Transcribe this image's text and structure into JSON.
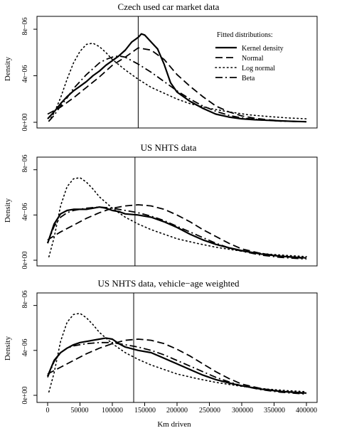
{
  "chart_data": [
    {
      "type": "line",
      "title": "Czech used car market data",
      "xlabel": "",
      "ylabel": "Density",
      "xlim": [
        0,
        400000
      ],
      "ylim": [
        0,
        8.8e-06
      ],
      "yticks": [
        0,
        4e-06,
        8e-06
      ],
      "ytick_labels": [
        "0e+00",
        "4e−06",
        "8e−06"
      ],
      "vline_x": 140000,
      "legend": {
        "title": "Fitted distributions:",
        "position": "top-right",
        "entries": [
          "Kernel density",
          "Normal",
          "Log normal",
          "Beta"
        ]
      },
      "series": [
        {
          "name": "Kernel density",
          "dash": "solid",
          "width": 2.2,
          "x": [
            0,
            10000,
            20000,
            30000,
            40000,
            50000,
            60000,
            70000,
            80000,
            90000,
            100000,
            110000,
            120000,
            130000,
            140000,
            145000,
            150000,
            160000,
            170000,
            180000,
            190000,
            200000,
            220000,
            240000,
            260000,
            280000,
            300000,
            320000,
            340000,
            360000,
            380000,
            400000
          ],
          "y": [
            3e-07,
            9e-07,
            1.6e-06,
            2.2e-06,
            2.7e-06,
            3.1e-06,
            3.5e-06,
            4e-06,
            4.4e-06,
            4.9e-06,
            5.3e-06,
            5.7e-06,
            6.2e-06,
            6.9e-06,
            7.3e-06,
            7.6e-06,
            7.5e-06,
            6.9e-06,
            6.3e-06,
            5e-06,
            3.4e-06,
            2.6e-06,
            1.8e-06,
            1.2e-06,
            7e-07,
            4.5e-07,
            3e-07,
            2.2e-07,
            1.7e-07,
            1.2e-07,
            8e-08,
            5e-08
          ]
        },
        {
          "name": "Normal",
          "dash": "longdash",
          "width": 1.8,
          "x": [
            0,
            20000,
            40000,
            60000,
            80000,
            100000,
            120000,
            140000,
            160000,
            180000,
            200000,
            220000,
            240000,
            260000,
            280000,
            300000,
            320000,
            340000,
            360000,
            380000,
            400000
          ],
          "y": [
            7e-07,
            1.3e-06,
            2.1e-06,
            3e-06,
            3.9e-06,
            4.9e-06,
            5.6e-06,
            6.4e-06,
            6.2e-06,
            5.4e-06,
            4.1e-06,
            3.1e-06,
            2.2e-06,
            1.4e-06,
            9e-07,
            5.5e-07,
            3.5e-07,
            2.2e-07,
            1.3e-07,
            8e-08,
            5e-08
          ]
        },
        {
          "name": "Log normal",
          "dash": "dotted",
          "width": 1.6,
          "x": [
            2000,
            10000,
            20000,
            30000,
            40000,
            50000,
            60000,
            70000,
            80000,
            90000,
            100000,
            120000,
            140000,
            160000,
            180000,
            200000,
            220000,
            250000,
            280000,
            310000,
            340000,
            370000,
            400000
          ],
          "y": [
            1e-07,
            8e-07,
            2.1e-06,
            3.7e-06,
            5.1e-06,
            6.1e-06,
            6.7e-06,
            6.8e-06,
            6.5e-06,
            6e-06,
            5.4e-06,
            4.5e-06,
            3.7e-06,
            3e-06,
            2.5e-06,
            2e-06,
            1.6e-06,
            1.2e-06,
            9e-07,
            6.5e-07,
            5e-07,
            3.8e-07,
            3e-07
          ]
        },
        {
          "name": "Beta",
          "dash": "dashdot",
          "width": 1.8,
          "x": [
            2000,
            10000,
            20000,
            30000,
            40000,
            50000,
            60000,
            70000,
            80000,
            90000,
            100000,
            110000,
            120000,
            140000,
            160000,
            180000,
            200000,
            220000,
            240000,
            260000,
            280000,
            300000,
            330000,
            360000,
            400000
          ],
          "y": [
            1e-07,
            6e-07,
            1.4e-06,
            2.1e-06,
            2.9e-06,
            3.5e-06,
            4.1e-06,
            4.6e-06,
            5.1e-06,
            5.4e-06,
            5.6e-06,
            5.7e-06,
            5.6e-06,
            5e-06,
            4.3e-06,
            3.5e-06,
            2.7e-06,
            2e-06,
            1.4e-06,
            9.5e-07,
            6e-07,
            3.8e-07,
            2e-07,
            1e-07,
            5e-08
          ]
        }
      ]
    },
    {
      "type": "line",
      "title": "US NHTS data",
      "xlabel": "",
      "ylabel": "Density",
      "xlim": [
        0,
        400000
      ],
      "ylim": [
        0,
        8.8e-06
      ],
      "yticks": [
        0,
        4e-06,
        8e-06
      ],
      "ytick_labels": [
        "0e+00",
        "4e−06",
        "8e−06"
      ],
      "vline_x": 135000,
      "series": [
        {
          "name": "Kernel density",
          "dash": "solid",
          "width": 2.2,
          "x": [
            0,
            10000,
            20000,
            30000,
            40000,
            60000,
            80000,
            90000,
            100000,
            110000,
            120000,
            140000,
            160000,
            180000,
            200000,
            220000,
            240000,
            260000,
            280000,
            300000,
            330000,
            360000,
            400000
          ],
          "y": [
            1.5e-06,
            3.2e-06,
            4.1e-06,
            4.4e-06,
            4.5e-06,
            4.5e-06,
            4.7e-06,
            4.6e-06,
            4.4e-06,
            4.3e-06,
            4.1e-06,
            4e-06,
            3.8e-06,
            3.4e-06,
            2.9e-06,
            2.3e-06,
            1.8e-06,
            1.4e-06,
            1.1e-06,
            8.5e-07,
            5.5e-07,
            3.5e-07,
            2e-07
          ]
        },
        {
          "name": "Normal",
          "dash": "longdash",
          "width": 1.8,
          "x": [
            0,
            20000,
            40000,
            60000,
            80000,
            100000,
            120000,
            140000,
            160000,
            180000,
            200000,
            220000,
            240000,
            260000,
            280000,
            300000,
            330000,
            360000,
            400000
          ],
          "y": [
            1.8e-06,
            2.5e-06,
            3.1e-06,
            3.7e-06,
            4.2e-06,
            4.6e-06,
            4.8e-06,
            4.9e-06,
            4.8e-06,
            4.5e-06,
            4e-06,
            3.4e-06,
            2.7e-06,
            2.1e-06,
            1.5e-06,
            1e-06,
            6e-07,
            3.5e-07,
            1.5e-07
          ]
        },
        {
          "name": "Log normal",
          "dash": "dotted",
          "width": 1.6,
          "x": [
            2000,
            10000,
            20000,
            30000,
            40000,
            50000,
            60000,
            70000,
            80000,
            100000,
            120000,
            140000,
            160000,
            180000,
            200000,
            230000,
            260000,
            300000,
            340000,
            370000,
            400000
          ],
          "y": [
            3e-07,
            2e-06,
            4.8e-06,
            6.5e-06,
            7.2e-06,
            7.3e-06,
            6.9e-06,
            6.3e-06,
            5.6e-06,
            4.6e-06,
            3.8e-06,
            3.2e-06,
            2.7e-06,
            2.3e-06,
            1.9e-06,
            1.5e-06,
            1.15e-06,
            8e-07,
            5.5e-07,
            4.2e-07,
            3.2e-07
          ]
        },
        {
          "name": "Beta",
          "dash": "dashdot",
          "width": 1.8,
          "x": [
            0,
            10000,
            20000,
            30000,
            40000,
            60000,
            80000,
            100000,
            120000,
            140000,
            160000,
            180000,
            200000,
            220000,
            240000,
            260000,
            280000,
            300000,
            330000,
            360000,
            400000
          ],
          "y": [
            1.5e-06,
            3e-06,
            3.8e-06,
            4.2e-06,
            4.4e-06,
            4.6e-06,
            4.7e-06,
            4.6e-06,
            4.4e-06,
            4.2e-06,
            3.9e-06,
            3.5e-06,
            3e-06,
            2.5e-06,
            2e-06,
            1.5e-06,
            1.1e-06,
            8e-07,
            4.5e-07,
            2.5e-07,
            1e-07
          ]
        }
      ]
    },
    {
      "type": "line",
      "title": "US NHTS data, vehicle−age weighted",
      "xlabel": "Km driven",
      "ylabel": "Density",
      "xlim": [
        0,
        400000
      ],
      "ylim": [
        0,
        8.8e-06
      ],
      "yticks": [
        0,
        4e-06,
        8e-06
      ],
      "ytick_labels": [
        "0e+00",
        "4e−06",
        "8e−06"
      ],
      "xticks": [
        0,
        50000,
        100000,
        150000,
        200000,
        250000,
        300000,
        350000,
        400000
      ],
      "xtick_labels": [
        "0",
        "50000",
        "100000",
        "150000",
        "200000",
        "250000",
        "300000",
        "350000",
        "400000"
      ],
      "vline_x": 133000,
      "series": [
        {
          "name": "Kernel density",
          "dash": "solid",
          "width": 2.2,
          "x": [
            0,
            10000,
            20000,
            30000,
            40000,
            50000,
            60000,
            70000,
            80000,
            90000,
            100000,
            110000,
            120000,
            140000,
            160000,
            180000,
            200000,
            220000,
            240000,
            260000,
            280000,
            300000,
            330000,
            360000,
            400000
          ],
          "y": [
            1.7e-06,
            3.1e-06,
            3.8e-06,
            4.2e-06,
            4.5e-06,
            4.7e-06,
            4.8e-06,
            4.9e-06,
            5e-06,
            5.1e-06,
            5e-06,
            4.6e-06,
            4.3e-06,
            4e-06,
            3.8e-06,
            3.3e-06,
            2.8e-06,
            2.3e-06,
            1.8e-06,
            1.4e-06,
            1.1e-06,
            8.5e-07,
            5.5e-07,
            3.5e-07,
            2e-07
          ]
        },
        {
          "name": "Normal",
          "dash": "longdash",
          "width": 1.8,
          "x": [
            0,
            20000,
            40000,
            60000,
            80000,
            100000,
            120000,
            140000,
            160000,
            180000,
            200000,
            220000,
            240000,
            260000,
            280000,
            300000,
            330000,
            360000,
            400000
          ],
          "y": [
            1.9e-06,
            2.5e-06,
            3.1e-06,
            3.7e-06,
            4.2e-06,
            4.6e-06,
            4.9e-06,
            5e-06,
            4.9e-06,
            4.6e-06,
            4.1e-06,
            3.5e-06,
            2.8e-06,
            2.1e-06,
            1.5e-06,
            1e-06,
            6e-07,
            3.5e-07,
            1.5e-07
          ]
        },
        {
          "name": "Log normal",
          "dash": "dotted",
          "width": 1.6,
          "x": [
            2000,
            10000,
            20000,
            30000,
            40000,
            50000,
            60000,
            70000,
            80000,
            100000,
            120000,
            140000,
            160000,
            180000,
            200000,
            230000,
            260000,
            300000,
            340000,
            370000,
            400000
          ],
          "y": [
            3e-07,
            2e-06,
            4.8e-06,
            6.5e-06,
            7.2e-06,
            7.3e-06,
            6.9e-06,
            6.3e-06,
            5.6e-06,
            4.6e-06,
            3.8e-06,
            3.2e-06,
            2.7e-06,
            2.3e-06,
            1.9e-06,
            1.5e-06,
            1.15e-06,
            8e-07,
            5.5e-07,
            4.2e-07,
            3.2e-07
          ]
        },
        {
          "name": "Beta",
          "dash": "dashdot",
          "width": 1.8,
          "x": [
            0,
            10000,
            20000,
            30000,
            40000,
            60000,
            80000,
            100000,
            120000,
            140000,
            160000,
            180000,
            200000,
            220000,
            240000,
            260000,
            280000,
            300000,
            330000,
            360000,
            400000
          ],
          "y": [
            1.6e-06,
            3e-06,
            3.8e-06,
            4.2e-06,
            4.4e-06,
            4.6e-06,
            4.7e-06,
            4.7e-06,
            4.5e-06,
            4.3e-06,
            4e-06,
            3.6e-06,
            3.1e-06,
            2.6e-06,
            2.1e-06,
            1.6e-06,
            1.2e-06,
            8.5e-07,
            5e-07,
            2.8e-07,
            1e-07
          ]
        }
      ]
    }
  ]
}
